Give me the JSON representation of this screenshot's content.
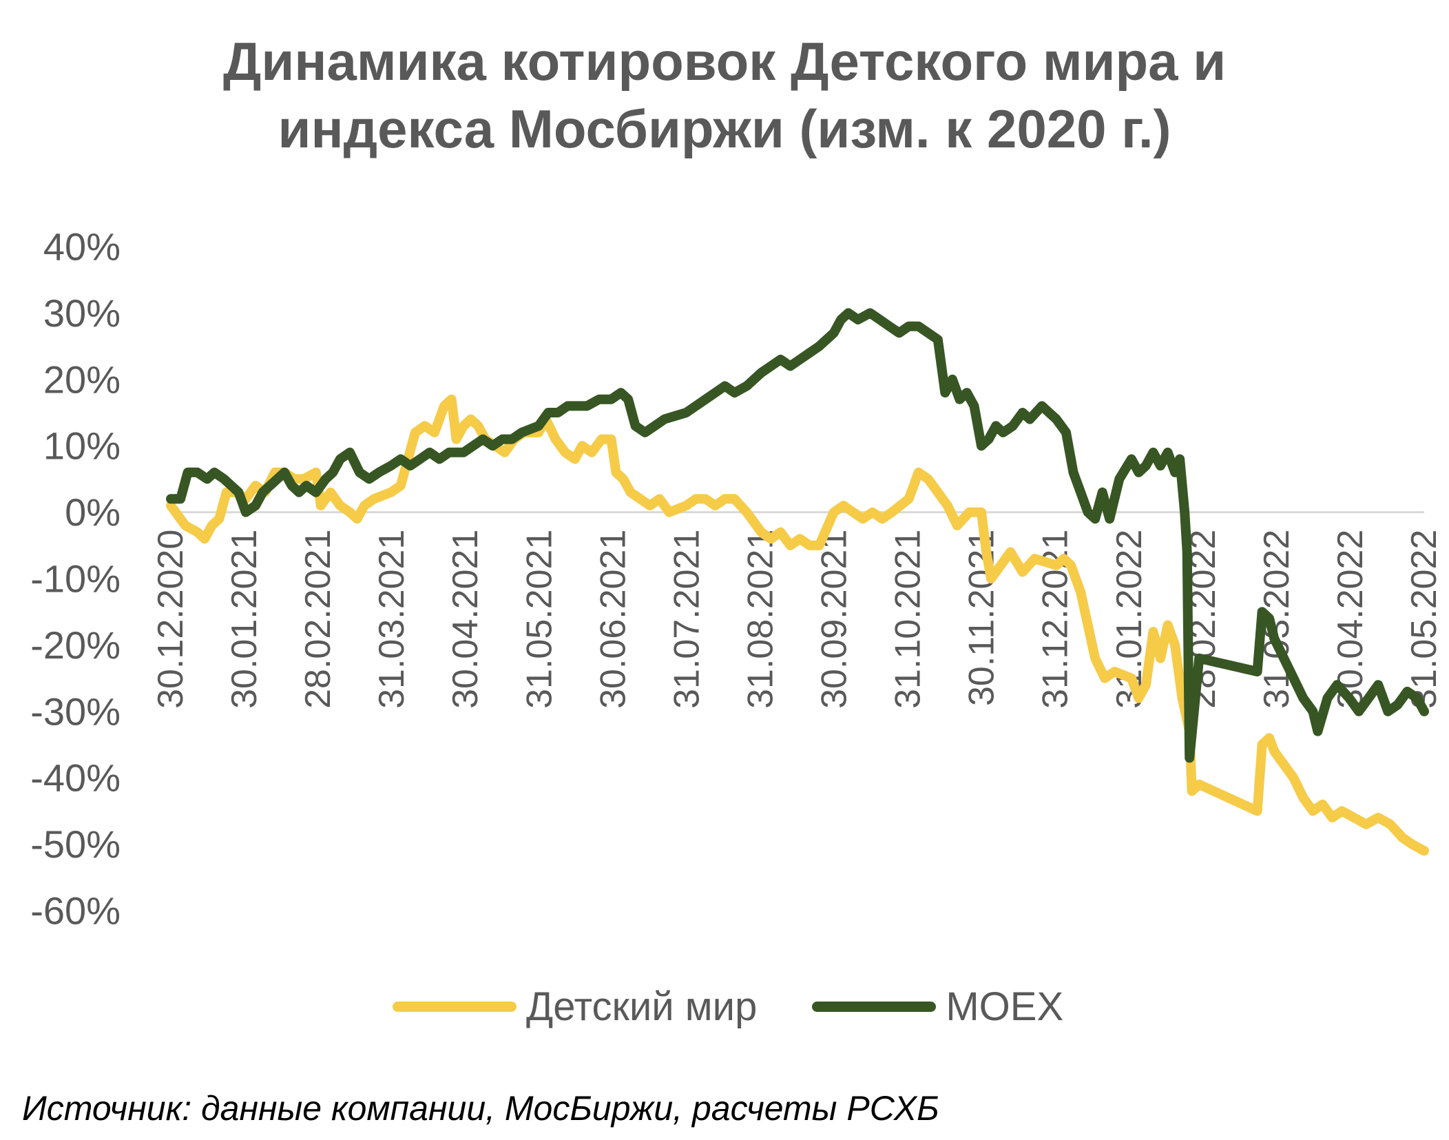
{
  "chart_data": {
    "type": "line",
    "title_lines": [
      "Динамика котировок Детского мира и",
      "индекса Мосбиржи (изм. к 2020 г.)"
    ],
    "x_ticks": [
      "30.12.2020",
      "30.01.2021",
      "28.02.2021",
      "31.03.2021",
      "30.04.2021",
      "31.05.2021",
      "30.06.2021",
      "31.07.2021",
      "31.08.2021",
      "30.09.2021",
      "31.10.2021",
      "30.11.2021",
      "31.12.2021",
      "31.01.2022",
      "28.02.2022",
      "31.03.2022",
      "30.04.2022",
      "31.05.2022"
    ],
    "y_ticks": [
      "40%",
      "30%",
      "20%",
      "10%",
      "0%",
      "-10%",
      "-20%",
      "-30%",
      "-40%",
      "-50%",
      "-60%"
    ],
    "ylim": [
      -60,
      40
    ],
    "y_unit": "%",
    "grid": false,
    "zero_line": true,
    "legend_position": "bottom",
    "x_start": "2020-12-30",
    "series": [
      {
        "name": "Детский мир",
        "color": "#F5CB48",
        "points": [
          [
            "2020-12-30",
            1
          ],
          [
            "2021-01-05",
            -2
          ],
          [
            "2021-01-10",
            -3
          ],
          [
            "2021-01-13",
            -4
          ],
          [
            "2021-01-16",
            -2
          ],
          [
            "2021-01-19",
            -1
          ],
          [
            "2021-01-22",
            3
          ],
          [
            "2021-01-26",
            3
          ],
          [
            "2021-01-30",
            2
          ],
          [
            "2021-02-03",
            4
          ],
          [
            "2021-02-07",
            3
          ],
          [
            "2021-02-11",
            6
          ],
          [
            "2021-02-15",
            6
          ],
          [
            "2021-02-19",
            5
          ],
          [
            "2021-02-23",
            5
          ],
          [
            "2021-02-28",
            6
          ],
          [
            "2021-03-02",
            1
          ],
          [
            "2021-03-06",
            3
          ],
          [
            "2021-03-10",
            1
          ],
          [
            "2021-03-14",
            0
          ],
          [
            "2021-03-17",
            -1
          ],
          [
            "2021-03-20",
            1
          ],
          [
            "2021-03-24",
            2
          ],
          [
            "2021-03-31",
            3
          ],
          [
            "2021-04-04",
            4
          ],
          [
            "2021-04-07",
            8
          ],
          [
            "2021-04-10",
            12
          ],
          [
            "2021-04-14",
            13
          ],
          [
            "2021-04-18",
            12
          ],
          [
            "2021-04-22",
            16
          ],
          [
            "2021-04-25",
            17
          ],
          [
            "2021-04-27",
            11
          ],
          [
            "2021-04-30",
            13
          ],
          [
            "2021-05-03",
            14
          ],
          [
            "2021-05-06",
            13
          ],
          [
            "2021-05-09",
            11
          ],
          [
            "2021-05-13",
            10
          ],
          [
            "2021-05-17",
            9
          ],
          [
            "2021-05-21",
            11
          ],
          [
            "2021-05-25",
            12
          ],
          [
            "2021-05-31",
            12
          ],
          [
            "2021-06-03",
            14
          ],
          [
            "2021-06-07",
            11
          ],
          [
            "2021-06-11",
            9
          ],
          [
            "2021-06-15",
            8
          ],
          [
            "2021-06-18",
            10
          ],
          [
            "2021-06-22",
            9
          ],
          [
            "2021-06-26",
            11
          ],
          [
            "2021-06-30",
            11
          ],
          [
            "2021-07-02",
            6
          ],
          [
            "2021-07-05",
            5
          ],
          [
            "2021-07-08",
            3
          ],
          [
            "2021-07-12",
            2
          ],
          [
            "2021-07-16",
            1
          ],
          [
            "2021-07-20",
            2
          ],
          [
            "2021-07-24",
            0
          ],
          [
            "2021-07-31",
            1
          ],
          [
            "2021-08-04",
            2
          ],
          [
            "2021-08-08",
            2
          ],
          [
            "2021-08-12",
            1
          ],
          [
            "2021-08-16",
            2
          ],
          [
            "2021-08-20",
            2
          ],
          [
            "2021-08-25",
            0
          ],
          [
            "2021-08-31",
            -3
          ],
          [
            "2021-09-04",
            -4
          ],
          [
            "2021-09-08",
            -3
          ],
          [
            "2021-09-12",
            -5
          ],
          [
            "2021-09-16",
            -4
          ],
          [
            "2021-09-20",
            -5
          ],
          [
            "2021-09-24",
            -5
          ],
          [
            "2021-09-30",
            0
          ],
          [
            "2021-10-04",
            1
          ],
          [
            "2021-10-08",
            0
          ],
          [
            "2021-10-12",
            -1
          ],
          [
            "2021-10-16",
            0
          ],
          [
            "2021-10-20",
            -1
          ],
          [
            "2021-10-24",
            0
          ],
          [
            "2021-10-31",
            2
          ],
          [
            "2021-11-04",
            6
          ],
          [
            "2021-11-08",
            5
          ],
          [
            "2021-11-12",
            3
          ],
          [
            "2021-11-16",
            1
          ],
          [
            "2021-11-20",
            -2
          ],
          [
            "2021-11-25",
            0
          ],
          [
            "2021-11-30",
            0
          ],
          [
            "2021-12-02",
            -6
          ],
          [
            "2021-12-04",
            -10
          ],
          [
            "2021-12-08",
            -8
          ],
          [
            "2021-12-12",
            -6
          ],
          [
            "2021-12-17",
            -9
          ],
          [
            "2021-12-22",
            -7
          ],
          [
            "2021-12-31",
            -8
          ],
          [
            "2022-01-03",
            -7
          ],
          [
            "2022-01-06",
            -8
          ],
          [
            "2022-01-10",
            -12
          ],
          [
            "2022-01-13",
            -17
          ],
          [
            "2022-01-16",
            -22
          ],
          [
            "2022-01-20",
            -25
          ],
          [
            "2022-01-24",
            -24
          ],
          [
            "2022-01-31",
            -25
          ],
          [
            "2022-02-03",
            -28
          ],
          [
            "2022-02-06",
            -26
          ],
          [
            "2022-02-09",
            -18
          ],
          [
            "2022-02-12",
            -22
          ],
          [
            "2022-02-15",
            -17
          ],
          [
            "2022-02-18",
            -20
          ],
          [
            "2022-02-21",
            -28
          ],
          [
            "2022-02-24",
            -33
          ],
          [
            "2022-02-25",
            -42
          ],
          [
            "2022-02-28",
            -41
          ],
          [
            "2022-03-24",
            -45
          ],
          [
            "2022-03-26",
            -35
          ],
          [
            "2022-03-29",
            -34
          ],
          [
            "2022-03-31",
            -36
          ],
          [
            "2022-04-04",
            -38
          ],
          [
            "2022-04-08",
            -40
          ],
          [
            "2022-04-12",
            -43
          ],
          [
            "2022-04-16",
            -45
          ],
          [
            "2022-04-20",
            -44
          ],
          [
            "2022-04-24",
            -46
          ],
          [
            "2022-04-28",
            -45
          ],
          [
            "2022-05-03",
            -46
          ],
          [
            "2022-05-08",
            -47
          ],
          [
            "2022-05-13",
            -46
          ],
          [
            "2022-05-18",
            -47
          ],
          [
            "2022-05-23",
            -49
          ],
          [
            "2022-05-27",
            -50
          ],
          [
            "2022-06-01",
            -51
          ]
        ]
      },
      {
        "name": "MOEX",
        "color": "#375623",
        "points": [
          [
            "2020-12-30",
            2
          ],
          [
            "2021-01-03",
            2
          ],
          [
            "2021-01-06",
            6
          ],
          [
            "2021-01-10",
            6
          ],
          [
            "2021-01-14",
            5
          ],
          [
            "2021-01-17",
            6
          ],
          [
            "2021-01-21",
            5
          ],
          [
            "2021-01-24",
            4
          ],
          [
            "2021-01-27",
            3
          ],
          [
            "2021-01-30",
            0
          ],
          [
            "2021-02-03",
            1
          ],
          [
            "2021-02-06",
            3
          ],
          [
            "2021-02-09",
            4
          ],
          [
            "2021-02-12",
            5
          ],
          [
            "2021-02-15",
            6
          ],
          [
            "2021-02-18",
            4
          ],
          [
            "2021-02-21",
            3
          ],
          [
            "2021-02-24",
            4
          ],
          [
            "2021-02-28",
            3
          ],
          [
            "2021-03-04",
            5
          ],
          [
            "2021-03-07",
            6
          ],
          [
            "2021-03-10",
            8
          ],
          [
            "2021-03-14",
            9
          ],
          [
            "2021-03-18",
            6
          ],
          [
            "2021-03-22",
            5
          ],
          [
            "2021-03-26",
            6
          ],
          [
            "2021-03-31",
            7
          ],
          [
            "2021-04-04",
            8
          ],
          [
            "2021-04-08",
            7
          ],
          [
            "2021-04-12",
            8
          ],
          [
            "2021-04-16",
            9
          ],
          [
            "2021-04-20",
            8
          ],
          [
            "2021-04-24",
            9
          ],
          [
            "2021-04-30",
            9
          ],
          [
            "2021-05-04",
            10
          ],
          [
            "2021-05-08",
            11
          ],
          [
            "2021-05-12",
            10
          ],
          [
            "2021-05-16",
            11
          ],
          [
            "2021-05-20",
            11
          ],
          [
            "2021-05-24",
            12
          ],
          [
            "2021-05-31",
            13
          ],
          [
            "2021-06-04",
            15
          ],
          [
            "2021-06-08",
            15
          ],
          [
            "2021-06-12",
            16
          ],
          [
            "2021-06-16",
            16
          ],
          [
            "2021-06-20",
            16
          ],
          [
            "2021-06-25",
            17
          ],
          [
            "2021-06-30",
            17
          ],
          [
            "2021-07-04",
            18
          ],
          [
            "2021-07-07",
            17
          ],
          [
            "2021-07-10",
            13
          ],
          [
            "2021-07-14",
            12
          ],
          [
            "2021-07-18",
            13
          ],
          [
            "2021-07-22",
            14
          ],
          [
            "2021-07-31",
            15
          ],
          [
            "2021-08-04",
            16
          ],
          [
            "2021-08-08",
            17
          ],
          [
            "2021-08-12",
            18
          ],
          [
            "2021-08-16",
            19
          ],
          [
            "2021-08-20",
            18
          ],
          [
            "2021-08-25",
            19
          ],
          [
            "2021-08-31",
            21
          ],
          [
            "2021-09-04",
            22
          ],
          [
            "2021-09-08",
            23
          ],
          [
            "2021-09-12",
            22
          ],
          [
            "2021-09-16",
            23
          ],
          [
            "2021-09-20",
            24
          ],
          [
            "2021-09-24",
            25
          ],
          [
            "2021-09-30",
            27
          ],
          [
            "2021-10-03",
            29
          ],
          [
            "2021-10-06",
            30
          ],
          [
            "2021-10-10",
            29
          ],
          [
            "2021-10-15",
            30
          ],
          [
            "2021-10-19",
            29
          ],
          [
            "2021-10-23",
            28
          ],
          [
            "2021-10-27",
            27
          ],
          [
            "2021-10-31",
            28
          ],
          [
            "2021-11-04",
            28
          ],
          [
            "2021-11-08",
            27
          ],
          [
            "2021-11-12",
            26
          ],
          [
            "2021-11-15",
            18
          ],
          [
            "2021-11-18",
            20
          ],
          [
            "2021-11-21",
            17
          ],
          [
            "2021-11-24",
            18
          ],
          [
            "2021-11-27",
            16
          ],
          [
            "2021-11-30",
            10
          ],
          [
            "2021-12-03",
            11
          ],
          [
            "2021-12-06",
            13
          ],
          [
            "2021-12-09",
            12
          ],
          [
            "2021-12-13",
            13
          ],
          [
            "2021-12-17",
            15
          ],
          [
            "2021-12-20",
            14
          ],
          [
            "2021-12-25",
            16
          ],
          [
            "2021-12-31",
            14
          ],
          [
            "2022-01-04",
            12
          ],
          [
            "2022-01-07",
            6
          ],
          [
            "2022-01-10",
            3
          ],
          [
            "2022-01-13",
            0
          ],
          [
            "2022-01-16",
            -1
          ],
          [
            "2022-01-19",
            3
          ],
          [
            "2022-01-22",
            -1
          ],
          [
            "2022-01-26",
            5
          ],
          [
            "2022-01-31",
            8
          ],
          [
            "2022-02-03",
            6
          ],
          [
            "2022-02-06",
            7
          ],
          [
            "2022-02-09",
            9
          ],
          [
            "2022-02-12",
            7
          ],
          [
            "2022-02-15",
            9
          ],
          [
            "2022-02-18",
            6
          ],
          [
            "2022-02-20",
            8
          ],
          [
            "2022-02-22",
            0
          ],
          [
            "2022-02-23",
            -6
          ],
          [
            "2022-02-24",
            -37
          ],
          [
            "2022-02-28",
            -22
          ],
          [
            "2022-03-24",
            -24
          ],
          [
            "2022-03-26",
            -15
          ],
          [
            "2022-03-29",
            -16
          ],
          [
            "2022-03-31",
            -19
          ],
          [
            "2022-04-04",
            -22
          ],
          [
            "2022-04-08",
            -25
          ],
          [
            "2022-04-12",
            -28
          ],
          [
            "2022-04-16",
            -30
          ],
          [
            "2022-04-18",
            -33
          ],
          [
            "2022-04-22",
            -28
          ],
          [
            "2022-04-26",
            -26
          ],
          [
            "2022-05-01",
            -28
          ],
          [
            "2022-05-05",
            -30
          ],
          [
            "2022-05-09",
            -28
          ],
          [
            "2022-05-13",
            -26
          ],
          [
            "2022-05-17",
            -30
          ],
          [
            "2022-05-21",
            -29
          ],
          [
            "2022-05-25",
            -27
          ],
          [
            "2022-05-29",
            -28
          ],
          [
            "2022-06-01",
            -30
          ]
        ]
      }
    ]
  },
  "source_note": "Источник: данные компании, МосБиржи, расчеты РСХБ"
}
